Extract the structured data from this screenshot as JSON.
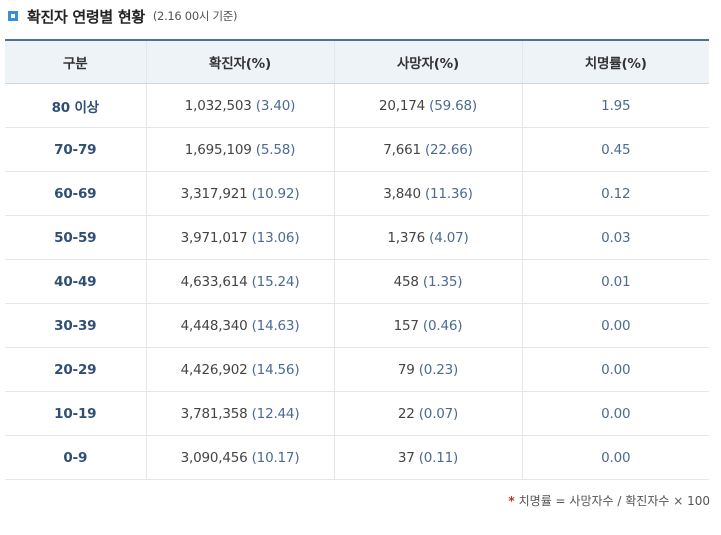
{
  "header": {
    "title": "확진자 연령별 현황",
    "subtitle": "(2.16 00시 기준)",
    "title_icon": "square-bullet-icon"
  },
  "table": {
    "columns": [
      "구분",
      "확진자(%)",
      "사망자(%)",
      "치명률(%)"
    ],
    "rows": [
      {
        "group": "80 이상",
        "confirmed": "1,032,503",
        "confirmed_pct": "(3.40)",
        "deaths": "20,174",
        "deaths_pct": "(59.68)",
        "fatality": "1.95"
      },
      {
        "group": "70-79",
        "confirmed": "1,695,109",
        "confirmed_pct": "(5.58)",
        "deaths": "7,661",
        "deaths_pct": "(22.66)",
        "fatality": "0.45"
      },
      {
        "group": "60-69",
        "confirmed": "3,317,921",
        "confirmed_pct": "(10.92)",
        "deaths": "3,840",
        "deaths_pct": "(11.36)",
        "fatality": "0.12"
      },
      {
        "group": "50-59",
        "confirmed": "3,971,017",
        "confirmed_pct": "(13.06)",
        "deaths": "1,376",
        "deaths_pct": "(4.07)",
        "fatality": "0.03"
      },
      {
        "group": "40-49",
        "confirmed": "4,633,614",
        "confirmed_pct": "(15.24)",
        "deaths": "458",
        "deaths_pct": "(1.35)",
        "fatality": "0.01"
      },
      {
        "group": "30-39",
        "confirmed": "4,448,340",
        "confirmed_pct": "(14.63)",
        "deaths": "157",
        "deaths_pct": "(0.46)",
        "fatality": "0.00"
      },
      {
        "group": "20-29",
        "confirmed": "4,426,902",
        "confirmed_pct": "(14.56)",
        "deaths": "79",
        "deaths_pct": "(0.23)",
        "fatality": "0.00"
      },
      {
        "group": "10-19",
        "confirmed": "3,781,358",
        "confirmed_pct": "(12.44)",
        "deaths": "22",
        "deaths_pct": "(0.07)",
        "fatality": "0.00"
      },
      {
        "group": "0-9",
        "confirmed": "3,090,456",
        "confirmed_pct": "(10.17)",
        "deaths": "37",
        "deaths_pct": "(0.11)",
        "fatality": "0.00"
      }
    ]
  },
  "footnote": {
    "marker": "*",
    "text": "치명률 = 사망자수 / 확진자수 × 100"
  },
  "colors": {
    "accent": "#3a8fd6",
    "header_bg": "#eef3f8",
    "group_text": "#2f4f77",
    "pct_text": "#4d6a92",
    "footnote_marker": "#d9261c"
  }
}
